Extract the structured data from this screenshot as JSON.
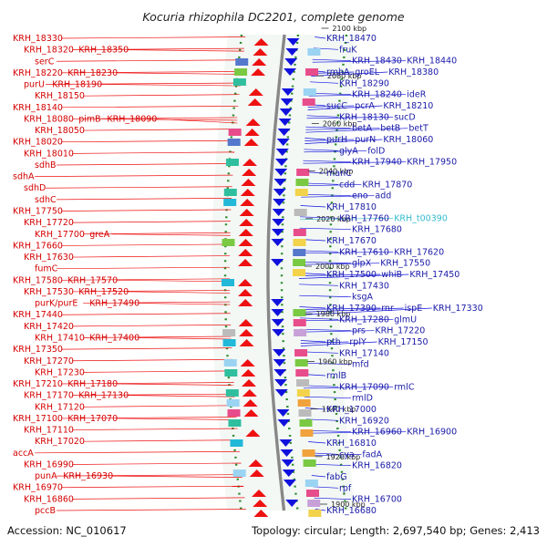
{
  "header": {
    "title": "Kocuria rhizophila DC2201, complete genome"
  },
  "footer": {
    "accession": "Accession: NC_010617",
    "summary": "Topology: circular; Length: 2,697,540 bp; Genes: 2,413"
  },
  "colors": {
    "forward_strand": "#ee1111",
    "reverse_strand": "#1111dd",
    "rna_label": "#33bbcc",
    "backbone": "#888888",
    "ticks": "#2e8b2e"
  },
  "scale_labels": [
    "2100 kbp",
    "2080 kbp",
    "2060 kbp",
    "2040 kbp",
    "2020 kbp",
    "2000 kbp",
    "1980 kbp",
    "1960 kbp",
    "1940 kbp",
    "1920 kbp",
    "1900 kbp"
  ],
  "left_labels": [
    [
      "KRH_18330"
    ],
    [
      "KRH_18320",
      "KRH_18350"
    ],
    [
      "serC"
    ],
    [
      "KRH_18220",
      "KRH_18230"
    ],
    [
      "purU",
      "KRH_18190"
    ],
    [
      "KRH_18150"
    ],
    [
      "KRH_18140"
    ],
    [
      "KRH_18080",
      "pimB",
      "KRH_18090"
    ],
    [
      "KRH_18050"
    ],
    [
      "KRH_18020"
    ],
    [
      "KRH_18010"
    ],
    [
      "sdhB"
    ],
    [
      "sdhA"
    ],
    [
      "sdhD"
    ],
    [
      "sdhC"
    ],
    [
      "KRH_17750"
    ],
    [
      "KRH_17720"
    ],
    [
      "KRH_17700",
      "greA"
    ],
    [
      "KRH_17660"
    ],
    [
      "KRH_17630"
    ],
    [
      "fumC"
    ],
    [
      "KRH_17580",
      "KRH_17570"
    ],
    [
      "KRH_17530",
      "KRH_17520"
    ],
    [
      "purK/purE",
      "KRH_17490"
    ],
    [
      "KRH_17440"
    ],
    [
      "KRH_17420"
    ],
    [
      "KRH_17410",
      "KRH_17400"
    ],
    [
      "KRH_17350"
    ],
    [
      "KRH_17270"
    ],
    [
      "KRH_17230"
    ],
    [
      "KRH_17210",
      "KRH_17180"
    ],
    [
      "KRH_17170",
      "KRH_17130"
    ],
    [
      "KRH_17120"
    ],
    [
      "KRH_17100",
      "KRH_17070"
    ],
    [
      "KRH_17110"
    ],
    [
      "KRH_17020"
    ],
    [
      "accA"
    ],
    [
      "KRH_16990"
    ],
    [
      "punA",
      "KRH_16930"
    ],
    [
      "KRH_16970"
    ],
    [
      "KRH_16860"
    ],
    [
      "pccB"
    ]
  ],
  "right_labels": [
    [
      "KRH_18470"
    ],
    [
      "fruK"
    ],
    [
      "KRH_18430",
      "KRH_18440"
    ],
    [
      "rmhA",
      "groEL",
      "KRH_18380"
    ],
    [
      "KRH_18290"
    ],
    [
      "KRH_18240",
      "ideR"
    ],
    [
      "sucC",
      "pcrA",
      "KRH_18210"
    ],
    [
      "KRH_18130",
      "sucD"
    ],
    [
      "betA",
      "betB",
      "betT"
    ],
    [
      "purH",
      "purN",
      "KRH_18060"
    ],
    [
      "glyA",
      "folD"
    ],
    [
      "KRH_17940",
      "KRH_17950"
    ],
    [
      "manC"
    ],
    [
      "cdd",
      "KRH_17870"
    ],
    [
      "eno",
      "add"
    ],
    [
      "KRH_17810"
    ],
    [
      "KRH_17760",
      "KRH_t00390"
    ],
    [
      "KRH_17680"
    ],
    [
      "KRH_17670"
    ],
    [
      "KRH_17610",
      "KRH_17620"
    ],
    [
      "glpX",
      "KRH_17550"
    ],
    [
      "KRH_17500",
      "whiB",
      "KRH_17450"
    ],
    [
      "KRH_17430"
    ],
    [
      "ksgA"
    ],
    [
      "KRH_17390",
      "rnr",
      "ispE",
      "KRH_17330"
    ],
    [
      "KRH_17280",
      "glmU"
    ],
    [
      "prs",
      "KRH_17220"
    ],
    [
      "pth",
      "rplY",
      "KRH_17150"
    ],
    [
      "KRH_17140"
    ],
    [
      "mfd"
    ],
    [
      "rmlB"
    ],
    [
      "KRH_17090",
      "rmlC"
    ],
    [
      "rmlD"
    ],
    [
      "KRH_17000"
    ],
    [
      "KRH_16920"
    ],
    [
      "KRH_16960",
      "KRH_16900"
    ],
    [
      "KRH_16810"
    ],
    [
      "cya",
      "fadA"
    ],
    [
      "KRH_16820"
    ],
    [
      "fabG"
    ],
    [
      "rpf"
    ],
    [
      "KRH_16700"
    ],
    [
      "KRH_16680"
    ]
  ]
}
